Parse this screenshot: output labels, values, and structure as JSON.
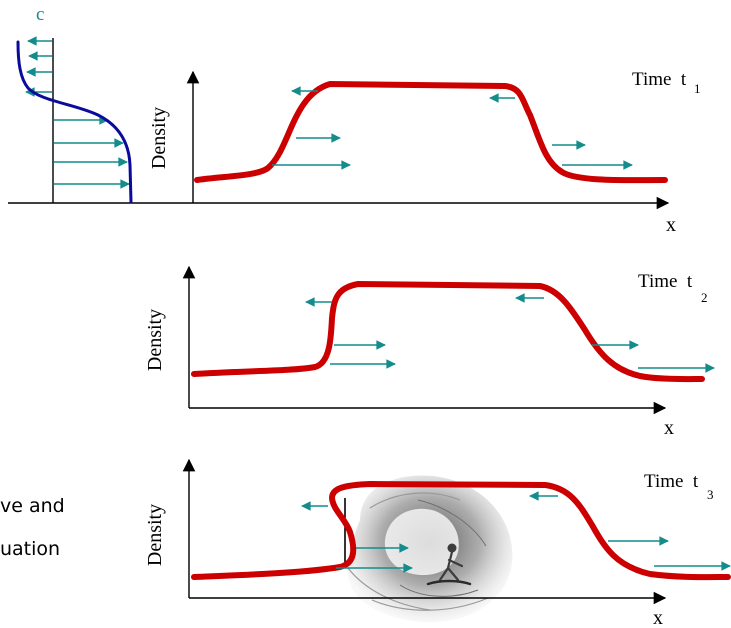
{
  "speed_profile": {
    "label": "c"
  },
  "panels": [
    {
      "time_label": "Time  t",
      "time_subscript": "1",
      "y_axis_label": "Density",
      "x_axis_label": "x"
    },
    {
      "time_label": "Time  t",
      "time_subscript": "2",
      "y_axis_label": "Density",
      "x_axis_label": "x"
    },
    {
      "time_label": "Time  t",
      "time_subscript": "3",
      "y_axis_label": "Density",
      "x_axis_label": "x"
    }
  ],
  "side_text": {
    "line1": "ve and",
    "line2": "uation"
  },
  "colors": {
    "density_curve": "#cc0000",
    "speed_curve": "#0a0a9c",
    "velocity_arrows": "#148c8c",
    "axes": "#000000"
  },
  "icons": {
    "surfer": "surfer-on-wave-illustration"
  }
}
